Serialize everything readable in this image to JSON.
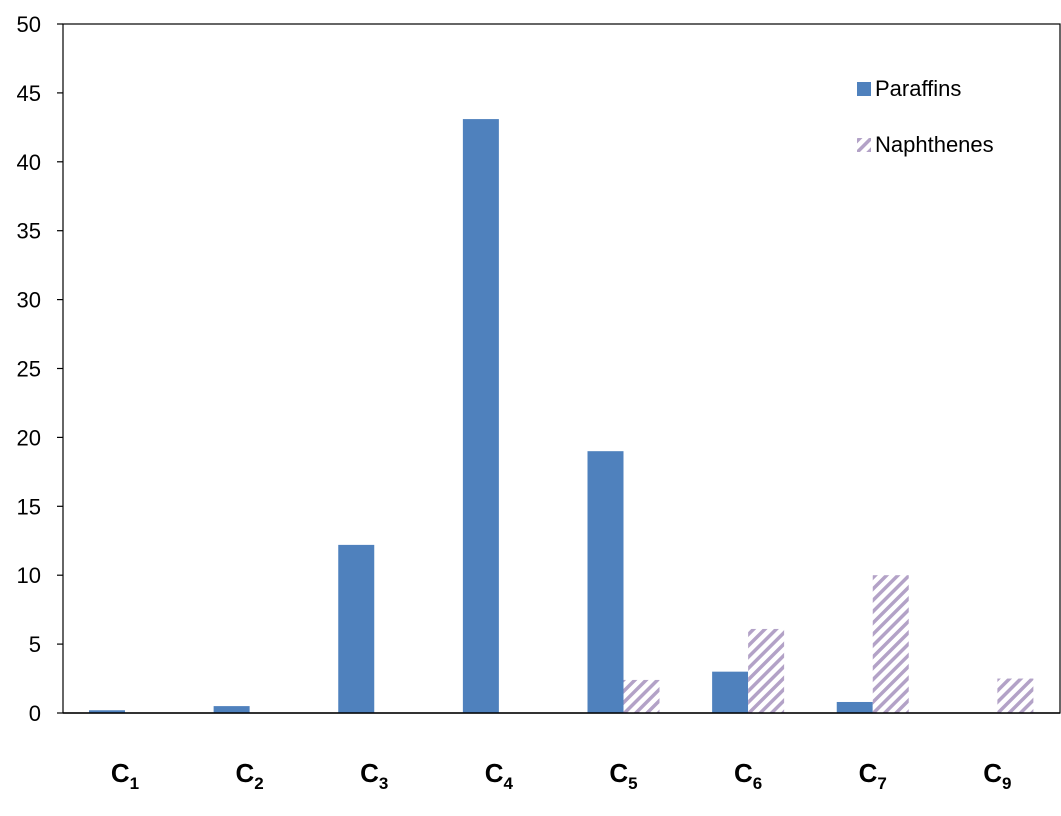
{
  "chart_data": {
    "type": "bar",
    "title": "",
    "xlabel": "",
    "ylabel": "",
    "ylim": [
      0,
      50
    ],
    "yticks": [
      0,
      5,
      10,
      15,
      20,
      25,
      30,
      35,
      40,
      45,
      50
    ],
    "categories": [
      "C1",
      "C2",
      "C3",
      "C4",
      "C5",
      "C6",
      "C7",
      "C9"
    ],
    "category_labels": [
      {
        "base": "C",
        "sub": "1"
      },
      {
        "base": "C",
        "sub": "2"
      },
      {
        "base": "C",
        "sub": "3"
      },
      {
        "base": "C",
        "sub": "4"
      },
      {
        "base": "C",
        "sub": "5"
      },
      {
        "base": "C",
        "sub": "6"
      },
      {
        "base": "C",
        "sub": "7"
      },
      {
        "base": "C",
        "sub": "9"
      }
    ],
    "series": [
      {
        "name": "Paraffins",
        "values": [
          0.2,
          0.5,
          12.2,
          43.1,
          19.0,
          3.0,
          0.8,
          0
        ],
        "color": "#4f81bd",
        "pattern": "solid"
      },
      {
        "name": "Naphthenes",
        "values": [
          0,
          0,
          0,
          0,
          2.4,
          6.1,
          10.0,
          2.5
        ],
        "color": "#b3a2c7",
        "pattern": "diagonal-hatch"
      }
    ],
    "grid": false,
    "legend": "top-right"
  }
}
